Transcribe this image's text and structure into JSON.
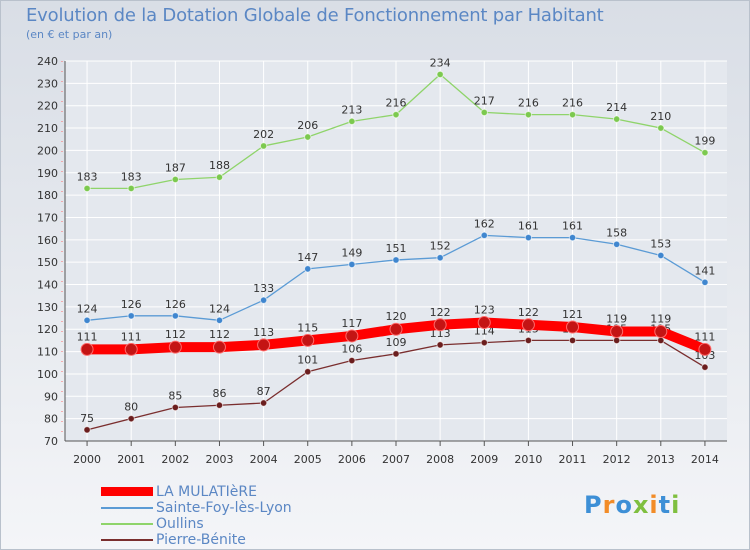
{
  "title": "Evolution de la Dotation Globale de Fonctionnement par Habitant",
  "subtitle": "(en € et par an)",
  "brand": {
    "text": "Proxiti",
    "colors": [
      "#3d8fd6",
      "#f28c28",
      "#3d8fd6",
      "#7fbf3f",
      "#f28c28",
      "#3d8fd6",
      "#7fbf3f"
    ]
  },
  "chart_data": {
    "type": "line",
    "title": "Evolution de la Dotation Globale de Fonctionnement par Habitant",
    "subtitle": "(en € et par an)",
    "xlabel": "",
    "ylabel": "",
    "x": [
      "2000",
      "2001",
      "2002",
      "2003",
      "2004",
      "2005",
      "2006",
      "2007",
      "2008",
      "2009",
      "2010",
      "2011",
      "2012",
      "2013",
      "2014"
    ],
    "ylim": [
      70,
      240
    ],
    "yticks": [
      70,
      80,
      90,
      100,
      110,
      120,
      130,
      140,
      150,
      160,
      170,
      180,
      190,
      200,
      210,
      220,
      230,
      240
    ],
    "grid": true,
    "legend_position": "bottom-left",
    "series": [
      {
        "name": "Pierre-Bénite",
        "color": "#7a2e2e",
        "marker": "#6b1e1e",
        "thick": false,
        "values": [
          75,
          80,
          85,
          86,
          87,
          101,
          106,
          109,
          113,
          114,
          115,
          115,
          115,
          115,
          103
        ]
      },
      {
        "name": "Sainte-Foy-lès-Lyon",
        "color": "#5b9bd5",
        "marker": "#3f86cf",
        "thick": false,
        "values": [
          124,
          126,
          126,
          124,
          133,
          147,
          149,
          151,
          152,
          162,
          161,
          161,
          158,
          153,
          141
        ]
      },
      {
        "name": "Oullins",
        "color": "#8fd46a",
        "marker": "#7cc94f",
        "thick": false,
        "values": [
          183,
          183,
          187,
          188,
          202,
          206,
          213,
          216,
          234,
          217,
          216,
          216,
          214,
          210,
          199
        ]
      },
      {
        "name": "LA MULATIèRE",
        "color": "#ff0000",
        "marker": "#c41414",
        "thick": true,
        "values": [
          111,
          111,
          112,
          112,
          113,
          115,
          117,
          120,
          122,
          123,
          122,
          121,
          119,
          119,
          111
        ]
      }
    ],
    "legend": [
      "LA MULATIèRE",
      "Sainte-Foy-lès-Lyon",
      "Oullins",
      "Pierre-Bénite"
    ]
  }
}
